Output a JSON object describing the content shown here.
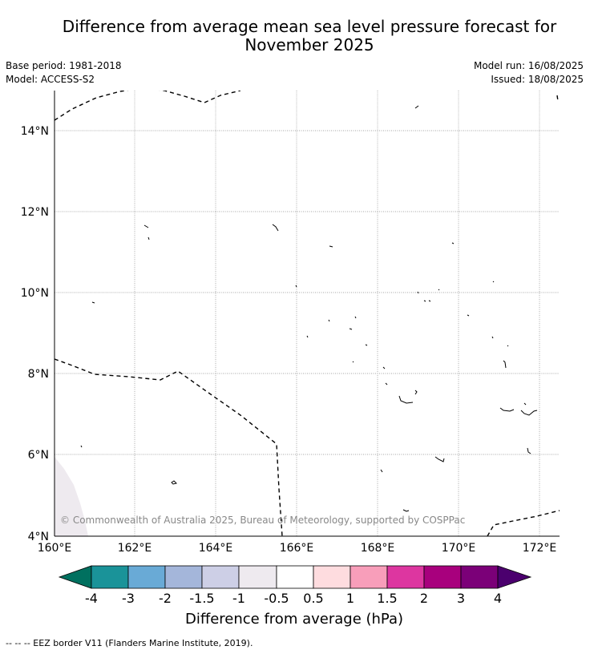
{
  "title_line1": "Difference from average mean sea level pressure forecast for",
  "title_line2": "November 2025",
  "meta": {
    "base_period": "Base period: 1981-2018",
    "model": "Model: ACCESS-S2",
    "model_run": "Model run: 16/08/2025",
    "issued": "Issued: 18/08/2025"
  },
  "map": {
    "lon_ticks": [
      "160°E",
      "162°E",
      "164°E",
      "166°E",
      "168°E",
      "170°E",
      "172°E"
    ],
    "lat_ticks": [
      "14°N",
      "12°N",
      "10°N",
      "8°N",
      "6°N",
      "4°N"
    ],
    "copyright": "© Commonwealth of Australia 2025, Bureau of Meteorology, supported by COSPPac",
    "shaded_category": "-1 to -0.5"
  },
  "colorbar": {
    "label": "Difference from average (hPa)",
    "ticks": [
      "-4",
      "-3",
      "-2",
      "-1.5",
      "-1",
      "-0.5",
      "0.5",
      "1",
      "1.5",
      "2",
      "3",
      "4"
    ],
    "colors": [
      "#00705f",
      "#1a9399",
      "#69aad6",
      "#a4b6da",
      "#cdcfe6",
      "#eeeaef",
      "#ffffff",
      "#fedcdf",
      "#f89eba",
      "#dd36a0",
      "#a8007d",
      "#7b0078",
      "#4b006e"
    ]
  },
  "footer": "--  --  -- EEZ border V11 (Flanders Marine Institute, 2019)."
}
